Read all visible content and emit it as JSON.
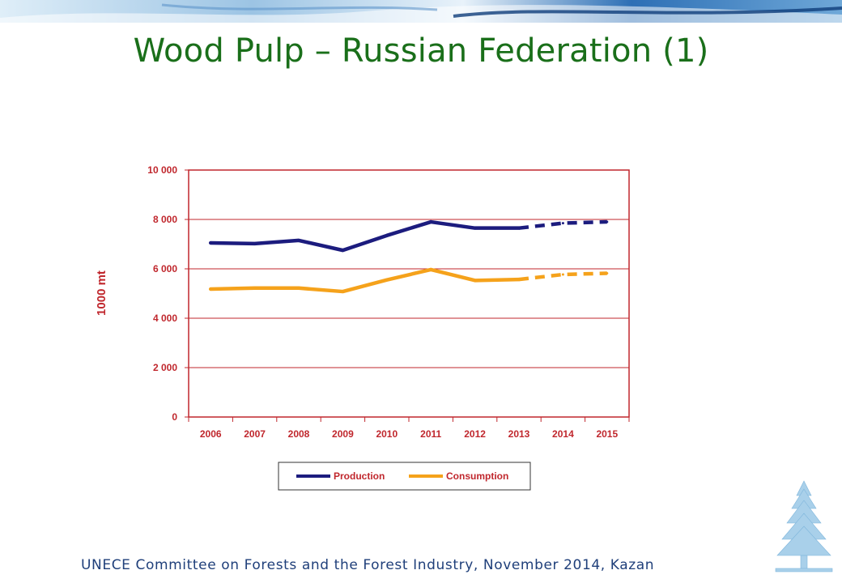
{
  "slide": {
    "title": "Wood Pulp – Russian Federation (1)",
    "footer": "UNECE Committee on Forests and the Forest Industry, November 2014, Kazan"
  },
  "colors": {
    "title": "#1a6f1a",
    "axis": "#c0272d",
    "production": "#1c1c7e",
    "consumption": "#f5a21b"
  },
  "chart_data": {
    "type": "line",
    "title": "",
    "xlabel": "",
    "ylabel": "1000 mt",
    "x": [
      "2006",
      "2007",
      "2008",
      "2009",
      "2010",
      "2011",
      "2012",
      "2013",
      "2014",
      "2015"
    ],
    "ylim": [
      0,
      10000
    ],
    "y_ticks": [
      "0",
      "2 000",
      "4 000",
      "6 000",
      "8 000",
      "10 000"
    ],
    "y_tick_values": [
      0,
      2000,
      4000,
      6000,
      8000,
      10000
    ],
    "grid": true,
    "legend_placement": "bottom",
    "forecast_from_index": 7,
    "series": [
      {
        "name": "Production",
        "color": "#1c1c7e",
        "values": [
          7050,
          7020,
          7150,
          6750,
          7350,
          7900,
          7650,
          7650,
          7850,
          7900
        ]
      },
      {
        "name": "Consumption",
        "color": "#f5a21b",
        "values": [
          5180,
          5220,
          5220,
          5080,
          5550,
          5970,
          5530,
          5570,
          5770,
          5820
        ]
      }
    ]
  }
}
